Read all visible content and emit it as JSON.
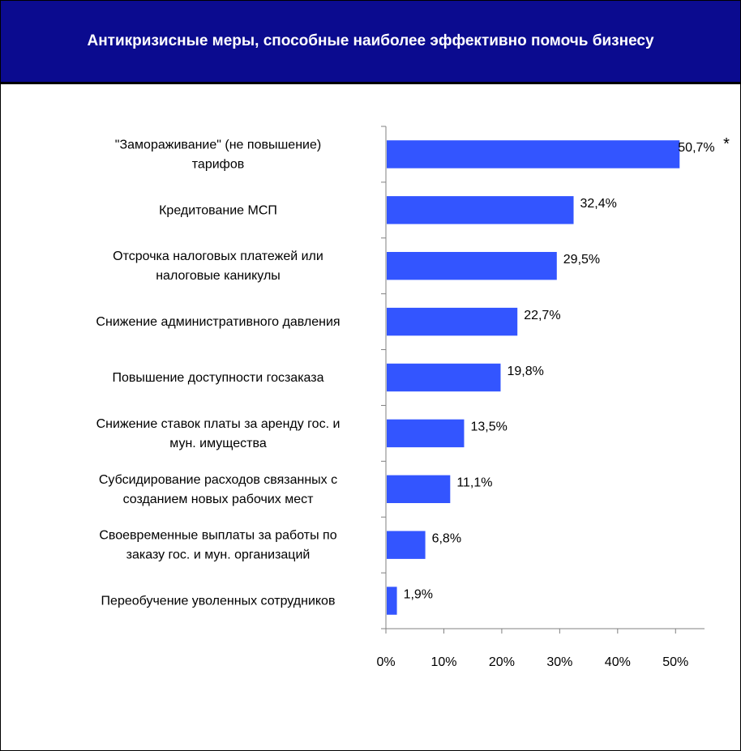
{
  "header": {
    "title": "Антикризисные меры, способные наиболее эффективно помочь бизнесу"
  },
  "chart_data": {
    "type": "bar",
    "orientation": "horizontal",
    "title": "Антикризисные меры, способные наиболее эффективно помочь бизнесу",
    "categories": [
      [
        "\"Замораживание\" (не повышение)",
        "тарифов"
      ],
      [
        "Кредитование МСП"
      ],
      [
        "Отсрочка налоговых платежей или",
        "налоговые каникулы"
      ],
      [
        "Снижение административного давления"
      ],
      [
        "Повышение доступности госзаказа"
      ],
      [
        "Снижение ставок платы за аренду гос. и",
        "мун. имущества"
      ],
      [
        "Субсидирование расходов связанных с",
        "созданием новых рабочих мест"
      ],
      [
        "Своевременные выплаты за работы по",
        "заказу гос. и мун. организаций"
      ],
      [
        "Переобучение уволенных сотрудников"
      ]
    ],
    "values": [
      50.7,
      32.4,
      29.5,
      22.7,
      19.8,
      13.5,
      11.1,
      6.8,
      1.9
    ],
    "value_labels": [
      "50,7%",
      "32,4%",
      "29,5%",
      "22,7%",
      "19,8%",
      "13,5%",
      "11,1%",
      "6,8%",
      "1,9%"
    ],
    "xlim": [
      0,
      55
    ],
    "x_ticks": [
      0,
      10,
      20,
      30,
      40,
      50
    ],
    "x_tick_labels": [
      "0%",
      "10%",
      "20%",
      "30%",
      "40%",
      "50%"
    ],
    "annotation": "*",
    "grid": false,
    "bar_color": "#3355ff"
  }
}
